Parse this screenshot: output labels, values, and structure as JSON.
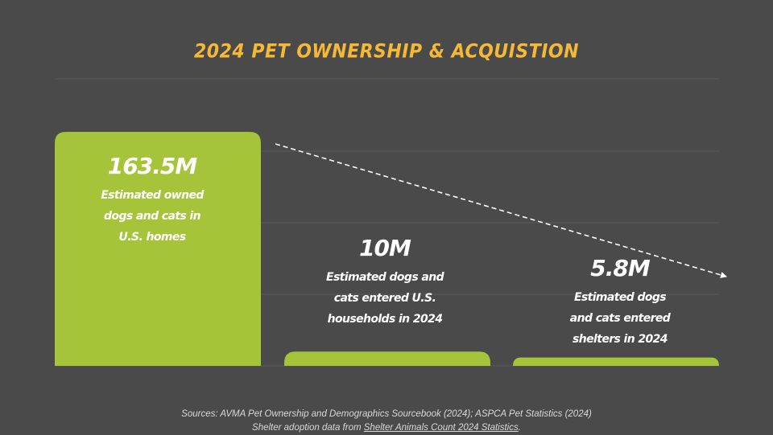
{
  "title": "2024 PET OWNERSHIP & ACQUISTION",
  "colors": {
    "background": "#4a4a4a",
    "title": "#f5b935",
    "bar": "#a6c43a",
    "text": "#ffffff",
    "grid": "#5b5b5b",
    "trend_arrow": "#ffffff"
  },
  "chart_data": {
    "type": "bar",
    "categories": [
      "U.S. homes",
      "Entered U.S. households 2024",
      "Entered shelters 2024"
    ],
    "values": [
      163.5,
      10,
      5.8
    ],
    "value_labels": [
      "163.5M",
      "10M",
      "5.8M"
    ],
    "descriptions": [
      [
        "Estimated owned",
        "dogs and cats in",
        "U.S. homes"
      ],
      [
        "Estimated dogs and",
        "cats entered U.S.",
        "households in 2024"
      ],
      [
        "Estimated dogs",
        "and cats entered",
        "shelters in 2024"
      ]
    ],
    "ylim": [
      0,
      163.5
    ],
    "grid": true,
    "trend_arrow": true
  },
  "footer": {
    "line1": "Sources: AVMA Pet Ownership and Demographics Sourcebook (2024); ASPCA Pet Statistics (2024)",
    "line2_prefix": "Shelter adoption data from ",
    "line2_link": "Shelter Animals Count 2024 Statistics",
    "line2_suffix": "."
  }
}
